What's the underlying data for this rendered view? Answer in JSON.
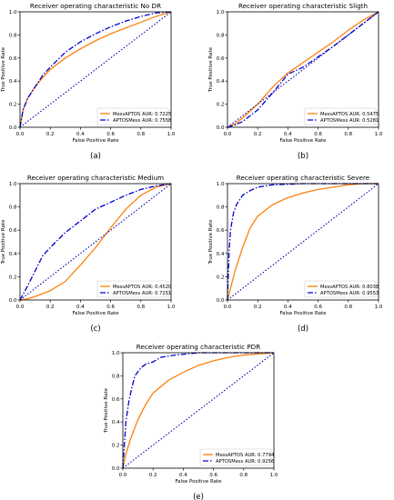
{
  "colors": {
    "series1": "#ff7f0e",
    "series2": "#0000cc",
    "chance": "#0000aa",
    "axis": "#000000"
  },
  "chart_data": [
    {
      "type": "line",
      "panel_label": "(a)",
      "title": "Receiver operating characteristic No DR",
      "xlabel": "False Positive Rate",
      "ylabel": "True Positive Rate",
      "xlim": [
        0,
        1
      ],
      "ylim": [
        0,
        1
      ],
      "x_ticks": [
        "0.0",
        "0.2",
        "0.4",
        "0.6",
        "0.8",
        "1.0"
      ],
      "y_ticks": [
        "0.0",
        "0.2",
        "0.4",
        "0.6",
        "0.8",
        "1.0"
      ],
      "legend_position": "lower-right",
      "series": [
        {
          "legend": "MessAPTOS AUR: 0.7225",
          "style": "solid",
          "color": "#ff7f0e",
          "x": [
            0,
            0.02,
            0.05,
            0.1,
            0.15,
            0.2,
            0.3,
            0.4,
            0.5,
            0.6,
            0.7,
            0.8,
            0.9,
            1.0
          ],
          "y": [
            0,
            0.15,
            0.25,
            0.35,
            0.43,
            0.5,
            0.6,
            0.68,
            0.75,
            0.81,
            0.86,
            0.91,
            0.96,
            1.0
          ]
        },
        {
          "legend": "APTOSMess AUR: 0.7558",
          "style": "dashdot",
          "color": "#0000cc",
          "x": [
            0,
            0.02,
            0.05,
            0.1,
            0.15,
            0.2,
            0.3,
            0.4,
            0.5,
            0.6,
            0.7,
            0.8,
            0.9,
            1.0
          ],
          "y": [
            0,
            0.15,
            0.25,
            0.35,
            0.45,
            0.52,
            0.65,
            0.74,
            0.81,
            0.87,
            0.92,
            0.96,
            0.99,
            1.0
          ]
        },
        {
          "legend": "",
          "style": "dotted",
          "color": "#0000aa",
          "x": [
            0,
            1
          ],
          "y": [
            0,
            1
          ]
        }
      ]
    },
    {
      "type": "line",
      "panel_label": "(b)",
      "title": "Receiver operating characteristic Sligth",
      "xlabel": "False Positive Rate",
      "ylabel": "True Positive Rate",
      "xlim": [
        0,
        1
      ],
      "ylim": [
        0,
        1
      ],
      "x_ticks": [
        "0.0",
        "0.2",
        "0.4",
        "0.6",
        "0.8",
        "1.0"
      ],
      "y_ticks": [
        "0.0",
        "0.2",
        "0.4",
        "0.6",
        "0.8",
        "1.0"
      ],
      "legend_position": "lower-right",
      "series": [
        {
          "legend": "MessAPTOS AUR: 0.5475",
          "style": "solid",
          "color": "#ff7f0e",
          "x": [
            0,
            0.05,
            0.1,
            0.2,
            0.3,
            0.4,
            0.5,
            0.6,
            0.7,
            0.8,
            0.9,
            1.0
          ],
          "y": [
            0,
            0.03,
            0.08,
            0.2,
            0.35,
            0.47,
            0.56,
            0.65,
            0.74,
            0.84,
            0.93,
            1.0
          ]
        },
        {
          "legend": "APTOSMess AUR: 0.5281",
          "style": "dashdot",
          "color": "#0000cc",
          "x": [
            0,
            0.05,
            0.1,
            0.2,
            0.3,
            0.4,
            0.5,
            0.6,
            0.7,
            0.8,
            0.9,
            1.0
          ],
          "y": [
            0,
            0.02,
            0.05,
            0.15,
            0.3,
            0.46,
            0.52,
            0.61,
            0.7,
            0.8,
            0.9,
            1.0
          ]
        },
        {
          "legend": "",
          "style": "dotted",
          "color": "#0000aa",
          "x": [
            0,
            1
          ],
          "y": [
            0,
            1
          ]
        }
      ]
    },
    {
      "type": "line",
      "panel_label": "(c)",
      "title": "Receiver operating characteristic Medium",
      "xlabel": "False Positive Rate",
      "ylabel": "True Positive Rate",
      "xlim": [
        0,
        1
      ],
      "ylim": [
        0,
        1
      ],
      "x_ticks": [
        "0.0",
        "0.2",
        "0.4",
        "0.6",
        "0.8",
        "1.0"
      ],
      "y_ticks": [
        "0.0",
        "0.2",
        "0.4",
        "0.6",
        "0.8",
        "1.0"
      ],
      "legend_position": "lower-right",
      "series": [
        {
          "legend": "MessAPTOS AUR: 0.4520",
          "style": "solid",
          "color": "#ff7f0e",
          "x": [
            0,
            0.05,
            0.1,
            0.2,
            0.3,
            0.4,
            0.5,
            0.6,
            0.7,
            0.8,
            0.9,
            1.0
          ],
          "y": [
            0,
            0.01,
            0.03,
            0.08,
            0.16,
            0.3,
            0.45,
            0.62,
            0.78,
            0.9,
            0.97,
            1.0
          ]
        },
        {
          "legend": "APTOSMess AUR: 0.7251",
          "style": "dashdot",
          "color": "#0000cc",
          "x": [
            0,
            0.05,
            0.1,
            0.15,
            0.2,
            0.3,
            0.4,
            0.5,
            0.6,
            0.7,
            0.8,
            0.9,
            1.0
          ],
          "y": [
            0,
            0.12,
            0.25,
            0.38,
            0.45,
            0.58,
            0.68,
            0.78,
            0.84,
            0.9,
            0.95,
            0.98,
            1.0
          ]
        },
        {
          "legend": "",
          "style": "dotted",
          "color": "#0000aa",
          "x": [
            0,
            1
          ],
          "y": [
            0,
            1
          ]
        }
      ]
    },
    {
      "type": "line",
      "panel_label": "(d)",
      "title": "Receiver operating characteristic Severe",
      "xlabel": "False Positive Rate",
      "ylabel": "True Positive Rate",
      "xlim": [
        0,
        1
      ],
      "ylim": [
        0,
        1
      ],
      "x_ticks": [
        "0.0",
        "0.2",
        "0.4",
        "0.6",
        "0.8",
        "1.0"
      ],
      "y_ticks": [
        "0.0",
        "0.2",
        "0.4",
        "0.6",
        "0.8",
        "1.0"
      ],
      "legend_position": "lower-right",
      "series": [
        {
          "legend": "MessAPTOS AUR: 0.8038",
          "style": "solid",
          "color": "#ff7f0e",
          "x": [
            0,
            0.02,
            0.05,
            0.1,
            0.15,
            0.2,
            0.3,
            0.4,
            0.5,
            0.6,
            0.7,
            0.8,
            0.9,
            1.0
          ],
          "y": [
            0,
            0.1,
            0.25,
            0.45,
            0.62,
            0.72,
            0.82,
            0.88,
            0.92,
            0.95,
            0.97,
            0.99,
            1.0,
            1.0
          ]
        },
        {
          "legend": "APTOSMess AUR: 0.9553",
          "style": "dashdot",
          "color": "#0000cc",
          "x": [
            0,
            0.01,
            0.02,
            0.04,
            0.06,
            0.1,
            0.15,
            0.2,
            0.3,
            0.5,
            1.0
          ],
          "y": [
            0,
            0.4,
            0.6,
            0.75,
            0.82,
            0.9,
            0.94,
            0.97,
            0.99,
            1.0,
            1.0
          ]
        },
        {
          "legend": "",
          "style": "dotted",
          "color": "#0000aa",
          "x": [
            0,
            1
          ],
          "y": [
            0,
            1
          ]
        }
      ]
    },
    {
      "type": "line",
      "panel_label": "(e)",
      "title": "Receiver operating characteristic PDR",
      "xlabel": "False Positive Rate",
      "ylabel": "True Positive Rate",
      "xlim": [
        0,
        1
      ],
      "ylim": [
        0,
        1
      ],
      "x_ticks": [
        "0.0",
        "0.2",
        "0.4",
        "0.6",
        "0.8",
        "1.0"
      ],
      "y_ticks": [
        "0.0",
        "0.2",
        "0.4",
        "0.6",
        "0.8",
        "1.0"
      ],
      "legend_position": "lower-right",
      "series": [
        {
          "legend": "MessAPTOS AUR: 0.7794",
          "style": "solid",
          "color": "#ff7f0e",
          "x": [
            0,
            0.02,
            0.05,
            0.1,
            0.15,
            0.2,
            0.3,
            0.4,
            0.5,
            0.6,
            0.7,
            0.8,
            0.9,
            1.0
          ],
          "y": [
            0,
            0.12,
            0.25,
            0.42,
            0.55,
            0.65,
            0.76,
            0.83,
            0.89,
            0.93,
            0.96,
            0.98,
            0.99,
            1.0
          ]
        },
        {
          "legend": "APTOSMess AUR: 0.9256",
          "style": "dashdot",
          "color": "#0000cc",
          "x": [
            0,
            0.01,
            0.02,
            0.04,
            0.06,
            0.08,
            0.12,
            0.15,
            0.2,
            0.25,
            0.35,
            0.5,
            1.0
          ],
          "y": [
            0,
            0.2,
            0.4,
            0.58,
            0.7,
            0.8,
            0.87,
            0.9,
            0.92,
            0.96,
            0.98,
            1.0,
            1.0
          ]
        },
        {
          "legend": "",
          "style": "dotted",
          "color": "#0000aa",
          "x": [
            0,
            1
          ],
          "y": [
            0,
            1
          ]
        }
      ]
    }
  ]
}
